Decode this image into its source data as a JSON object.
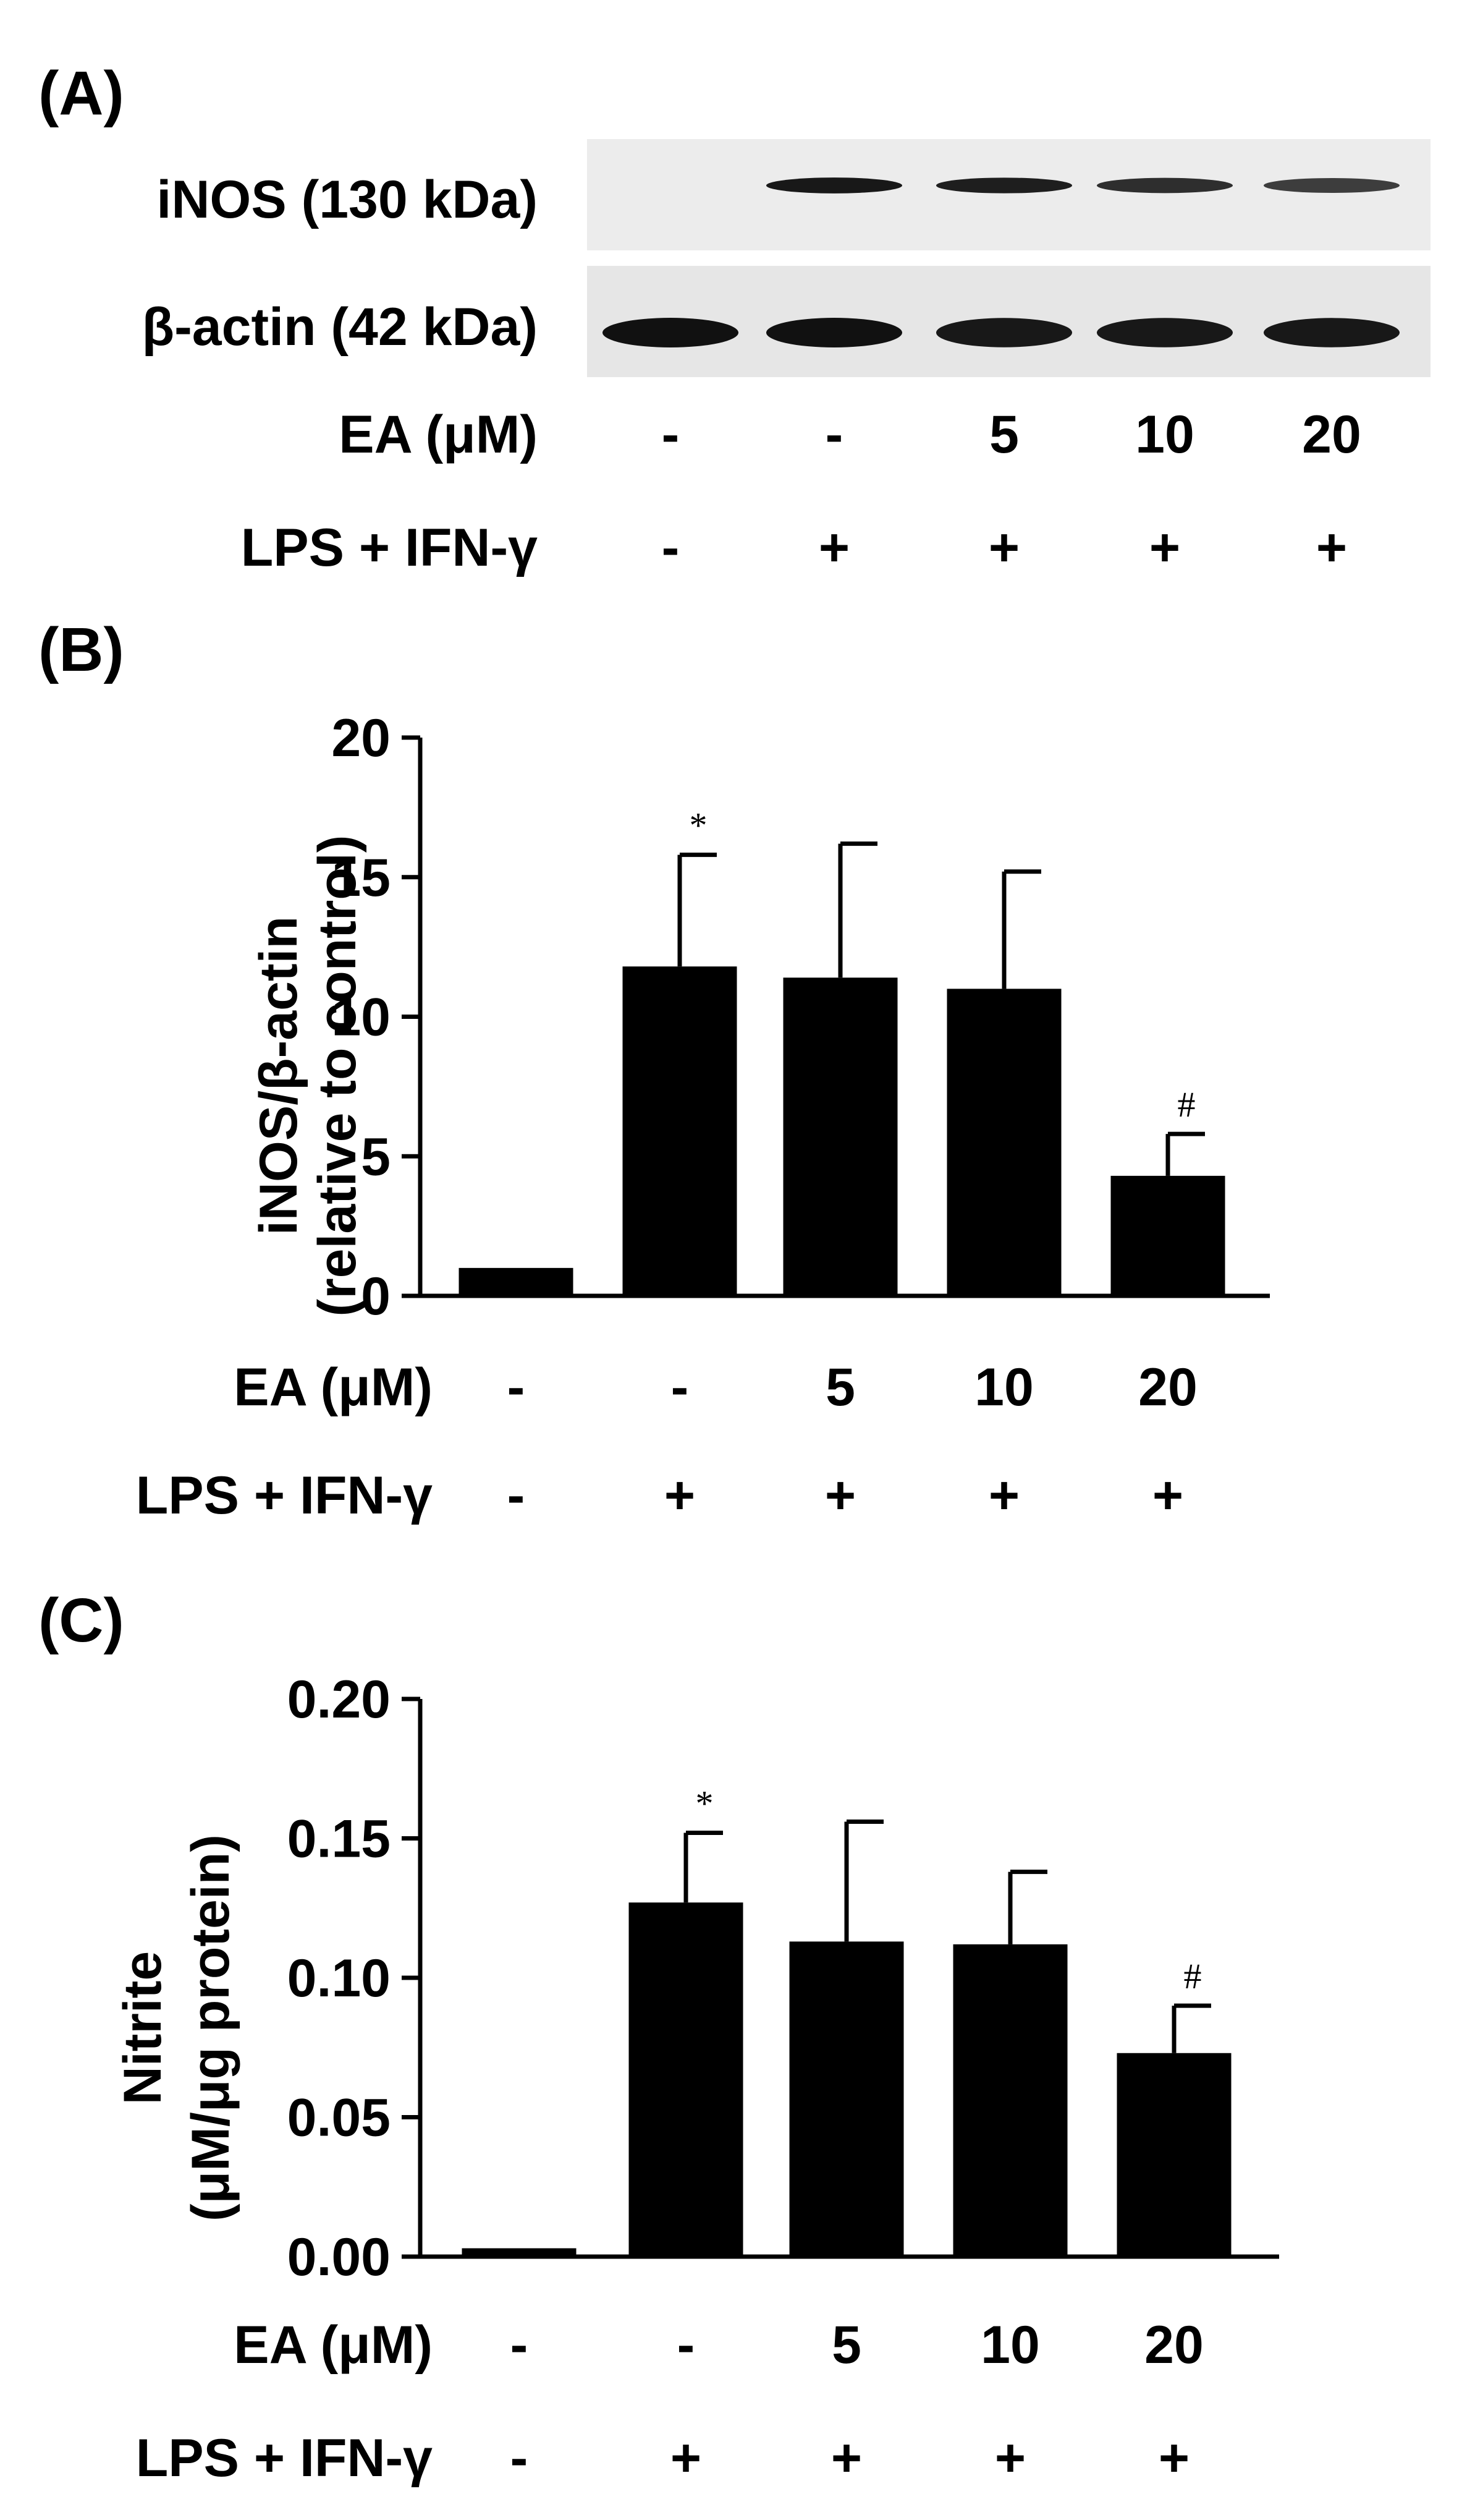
{
  "panels": {
    "a": {
      "label": "(A)"
    },
    "b": {
      "label": "(B)"
    },
    "c": {
      "label": "(C)"
    }
  },
  "blot": {
    "rows": [
      {
        "label": "iNOS (130 kDa)",
        "band_intensity": [
          0.0,
          0.95,
          0.9,
          0.8,
          0.7
        ]
      },
      {
        "label": "β-actin (42 kDa)",
        "band_intensity": [
          1.0,
          1.0,
          0.95,
          0.95,
          0.95
        ]
      }
    ]
  },
  "conditions": {
    "ea_label": "EA (μM)",
    "lps_label": "LPS + IFN-γ",
    "ea_values": [
      "-",
      "-",
      "5",
      "10",
      "20"
    ],
    "lps_values": [
      "-",
      "+",
      "+",
      "+",
      "+"
    ]
  },
  "chart_data": [
    {
      "type": "bar",
      "panel": "B",
      "ylabel": "iNOS/β-actin",
      "ylabel2": "(relative to control)",
      "ylim": [
        0,
        20
      ],
      "yticks": [
        "0",
        "5",
        "10",
        "15",
        "20"
      ],
      "categories": [
        "-/-",
        "-/+",
        "5/+",
        "10/+",
        "20/+"
      ],
      "values": [
        1.0,
        11.8,
        11.4,
        11.0,
        4.3
      ],
      "errors": [
        0.0,
        4.0,
        4.8,
        4.2,
        1.5
      ],
      "annotations": [
        "",
        "*",
        "",
        "",
        "#"
      ],
      "color": "#000000"
    },
    {
      "type": "bar",
      "panel": "C",
      "ylabel": "Nitrite",
      "ylabel2": "(μM/μg protein)",
      "ylim": [
        0,
        0.2
      ],
      "yticks": [
        "0.00",
        "0.05",
        "0.10",
        "0.15",
        "0.20"
      ],
      "categories": [
        "-/-",
        "-/+",
        "5/+",
        "10/+",
        "20/+"
      ],
      "values": [
        0.003,
        0.127,
        0.113,
        0.112,
        0.073
      ],
      "errors": [
        0.0,
        0.025,
        0.043,
        0.026,
        0.017
      ],
      "annotations": [
        "",
        "*",
        "",
        "",
        "#"
      ],
      "color": "#000000"
    }
  ]
}
